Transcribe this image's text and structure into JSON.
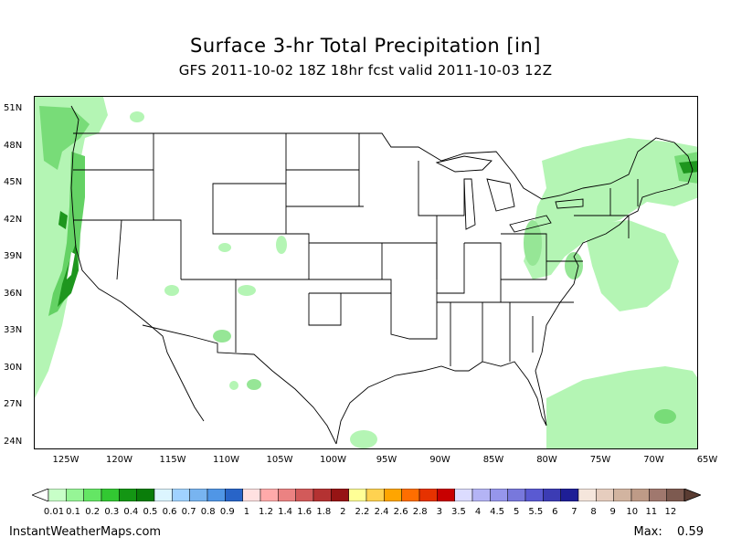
{
  "header": {
    "title": "Surface 3-hr Total Precipitation [in]",
    "subtitle": "GFS 2011-10-02 18Z 18hr fcst valid 2011-10-03 12Z"
  },
  "axes": {
    "lat_labels": [
      "51N",
      "48N",
      "45N",
      "42N",
      "39N",
      "36N",
      "33N",
      "30N",
      "27N",
      "24N"
    ],
    "lon_labels": [
      "125W",
      "120W",
      "115W",
      "110W",
      "105W",
      "100W",
      "95W",
      "90W",
      "85W",
      "80W",
      "75W",
      "70W",
      "65W"
    ]
  },
  "colorbar": {
    "labels": [
      "0.01",
      "0.1",
      "0.2",
      "0.3",
      "0.4",
      "0.5",
      "0.6",
      "0.7",
      "0.8",
      "0.9",
      "1",
      "1.2",
      "1.4",
      "1.6",
      "1.8",
      "2",
      "2.2",
      "2.4",
      "2.6",
      "2.8",
      "3",
      "3.5",
      "4",
      "4.5",
      "5",
      "5.5",
      "6",
      "7",
      "8",
      "9",
      "10",
      "11",
      "12"
    ],
    "colors": [
      "#c8ffc8",
      "#96f596",
      "#64e664",
      "#32c832",
      "#149614",
      "#0a7d0a",
      "#dcf5ff",
      "#a0d2ff",
      "#78b4f0",
      "#5096e6",
      "#2864c8",
      "#ffe1e1",
      "#ffaaaa",
      "#eb8282",
      "#d25a5a",
      "#b43232",
      "#961414",
      "#ffff96",
      "#ffd250",
      "#ffa500",
      "#ff6e00",
      "#e63200",
      "#c80000",
      "#dcdcff",
      "#b4b4f5",
      "#9696eb",
      "#7878dc",
      "#5a5ad2",
      "#3c3cb4",
      "#1e1e96",
      "#f5e6dc",
      "#e6cdbe",
      "#d2b4a0",
      "#be9b87",
      "#a0786e",
      "#7d5a50"
    ]
  },
  "footer": {
    "source": "InstantWeatherMaps.com",
    "max_label": "Max:",
    "max_value": "0.59"
  },
  "colors": {
    "light_green": "#b4f5b4",
    "mid_green": "#64d264",
    "dark_green": "#1e961e"
  }
}
